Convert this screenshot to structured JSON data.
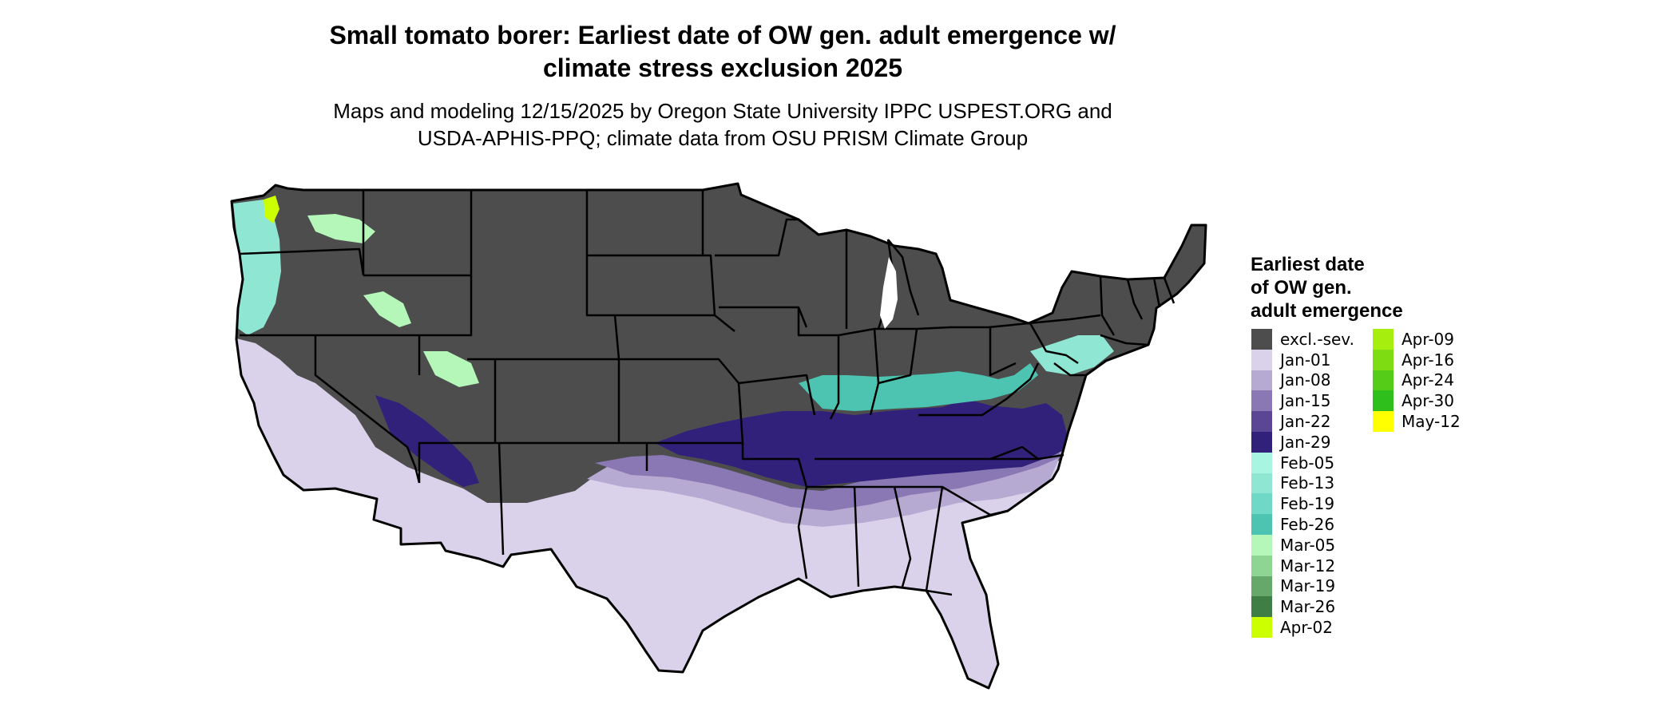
{
  "title_lines": [
    "Small tomato borer: Earliest date of OW gen. adult emergence w/",
    "climate stress exclusion 2025"
  ],
  "subtitle_lines": [
    "Maps and modeling 12/15/2025 by Oregon State University IPPC USPEST.ORG and",
    "USDA-APHIS-PPQ; climate data from OSU PRISM Climate Group"
  ],
  "legend": {
    "title_lines": [
      "Earliest date",
      "of OW gen.",
      "adult emergence"
    ],
    "items": [
      {
        "label": "excl.-sev.",
        "color": "#4d4d4d"
      },
      {
        "label": "Jan-01",
        "color": "#dad2ea"
      },
      {
        "label": "Jan-08",
        "color": "#b6a9d2"
      },
      {
        "label": "Jan-15",
        "color": "#8a78b5"
      },
      {
        "label": "Jan-22",
        "color": "#5b4696"
      },
      {
        "label": "Jan-29",
        "color": "#32217b"
      },
      {
        "label": "Feb-05",
        "color": "#a8f5e1"
      },
      {
        "label": "Feb-13",
        "color": "#8ee6d3"
      },
      {
        "label": "Feb-19",
        "color": "#6fd8c6"
      },
      {
        "label": "Feb-26",
        "color": "#4cc4b1"
      },
      {
        "label": "Mar-05",
        "color": "#b5f7b8"
      },
      {
        "label": "Mar-12",
        "color": "#8ed492"
      },
      {
        "label": "Mar-19",
        "color": "#65a86a"
      },
      {
        "label": "Mar-26",
        "color": "#3f7f45"
      },
      {
        "label": "Apr-02",
        "color": "#ccff00"
      },
      {
        "label": "Apr-09",
        "color": "#a6ee0d"
      },
      {
        "label": "Apr-16",
        "color": "#7edd12"
      },
      {
        "label": "Apr-24",
        "color": "#55cc17"
      },
      {
        "label": "Apr-30",
        "color": "#2ebf1c"
      },
      {
        "label": "May-12",
        "color": "#ffff00"
      }
    ]
  },
  "map": {
    "border_color": "#000000",
    "zone_colors": {
      "excluded": "#4d4d4d",
      "jan01": "#dad2ea",
      "jan08": "#b6a9d2",
      "jan15": "#8a78b5",
      "jan29": "#32217b",
      "feb13": "#8ee6d3",
      "feb26": "#4cc4b1",
      "mar05": "#b5f7b8",
      "apr02": "#ccff00"
    }
  }
}
